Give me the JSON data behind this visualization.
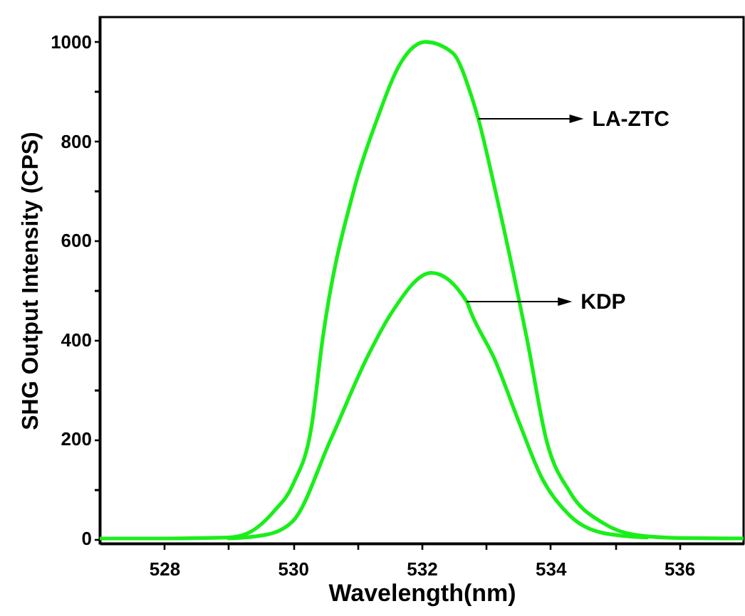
{
  "chart_data": {
    "type": "line",
    "xlabel": "Wavelength(nm)",
    "ylabel": "SHG Output Intensity (CPS)",
    "xlim": [
      527,
      537
    ],
    "ylim": [
      -10,
      1050
    ],
    "xticks": [
      528,
      {
        "value": 529,
        "label": null
      },
      530,
      {
        "value": 531,
        "label": null
      },
      532,
      {
        "value": 533,
        "label": null
      },
      534,
      {
        "value": 535,
        "label": null
      },
      536
    ],
    "yticks": [
      0,
      {
        "value": 100,
        "label": null
      },
      200,
      {
        "value": 300,
        "label": null
      },
      400,
      {
        "value": 500,
        "label": null
      },
      600,
      {
        "value": 700,
        "label": null
      },
      800,
      {
        "value": 900,
        "label": null
      },
      1000
    ],
    "grid": false,
    "line_style": "solid",
    "marker": "none",
    "series": [
      {
        "color": "#1aee1a",
        "x": [
          527,
          528,
          529,
          529.27,
          529.7,
          530.01,
          530.29,
          530.46,
          530.95,
          531.31,
          531.68,
          532.06,
          532.48,
          532.77,
          532.88,
          533.14,
          533.64,
          533.94,
          534.31,
          534.82,
          535.33,
          536,
          537
        ],
        "values": [
          0,
          0,
          2,
          9,
          54,
          111,
          226,
          400,
          703,
          845,
          959,
          1000,
          978,
          892,
          845,
          703,
          399,
          197,
          92,
          31,
          7,
          1,
          0
        ]
      },
      {
        "color": "#1aee1a",
        "x": [
          529,
          529.56,
          530,
          530.58,
          531.17,
          531.53,
          532.15,
          532.7,
          532.77,
          533.14,
          533.51,
          533.87,
          534.31,
          534.82,
          535.5
        ],
        "values": [
          0,
          7,
          35,
          197,
          369,
          454,
          535,
          477,
          454,
          359,
          235,
          121,
          45,
          11,
          2
        ]
      }
    ],
    "annotations": [
      {
        "text": "LA-ZTC",
        "x": 532.88,
        "y": 845
      },
      {
        "text": "KDP",
        "x": 532.7,
        "y": 477
      }
    ]
  }
}
